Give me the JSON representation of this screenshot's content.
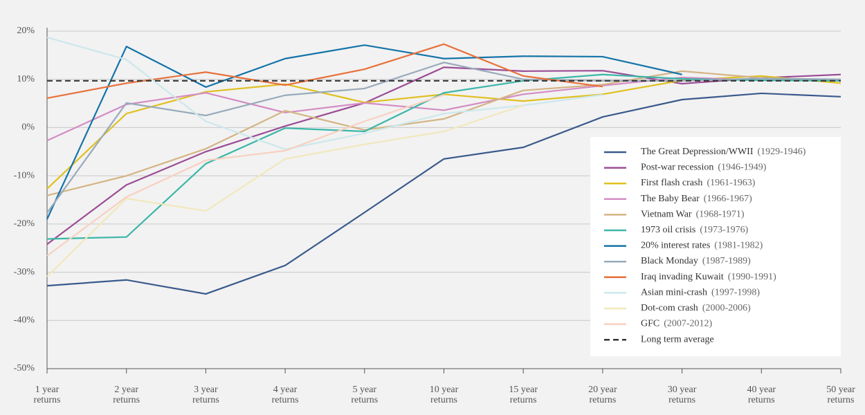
{
  "chart_data": {
    "type": "line",
    "categories": [
      "1 year returns",
      "2 year returns",
      "3 year returns",
      "4 year returns",
      "5 year returns",
      "10 year returns",
      "15 year returns",
      "20 year returns",
      "30 year returns",
      "40 year returns",
      "50 year returns"
    ],
    "ylim": [
      -50,
      20
    ],
    "yticks": [
      {
        "value": 20,
        "label": "20%"
      },
      {
        "value": 10,
        "label": "10%"
      },
      {
        "value": 0,
        "label": "0%"
      },
      {
        "value": -10,
        "label": "-10%"
      },
      {
        "value": -20,
        "label": "-20%"
      },
      {
        "value": -30,
        "label": "-30%"
      },
      {
        "value": -40,
        "label": "-40%"
      },
      {
        "value": -50,
        "label": "-50%"
      }
    ],
    "grid": true,
    "legend": "right",
    "series": [
      {
        "name": "The Great Depression/WWII",
        "period": "(1929-1946)",
        "color": "#3a5a8c",
        "values": [
          -32.8,
          -31.6,
          -34.5,
          -28.6,
          -17.6,
          -6.5,
          -4.1,
          2.2,
          5.8,
          7.1,
          6.4
        ]
      },
      {
        "name": "Post-war recession",
        "period": "(1946-1949)",
        "color": "#9b4d96",
        "values": [
          -24.2,
          -11.9,
          -5,
          0.3,
          5.1,
          12.5,
          11.7,
          11.8,
          9.1,
          10.3,
          11
        ]
      },
      {
        "name": "First flash crash",
        "period": "(1961-1963)",
        "color": "#e0c020",
        "values": [
          -12.7,
          2.9,
          7.4,
          9,
          5.2,
          6.9,
          5.5,
          6.9,
          9.8,
          10.7,
          9.2
        ]
      },
      {
        "name": "The Baby Bear",
        "period": "(1966-1967)",
        "color": "#d48cc4",
        "values": [
          -2.7,
          4.8,
          7.2,
          3.1,
          5.1,
          3.6,
          6.9,
          8.7,
          10.4,
          9.8,
          10
        ]
      },
      {
        "name": "Vietnam War",
        "period": "(1968-1971)",
        "color": "#d4b483",
        "values": [
          -14.1,
          -10,
          -4.4,
          3.5,
          -0.5,
          1.8,
          7.7,
          8.9,
          11.7,
          10.3,
          9.7
        ]
      },
      {
        "name": "1973 oil crisis",
        "period": "(1973-1976)",
        "color": "#3bb6a8",
        "values": [
          -23.1,
          -22.7,
          -7.5,
          -0.1,
          -0.8,
          7.2,
          9.7,
          11,
          10.1,
          9.8,
          9.7
        ]
      },
      {
        "name": "20% interest rates",
        "period": "(1981-1982)",
        "color": "#1474a8",
        "values": [
          -19,
          16.8,
          8.4,
          14.3,
          17.1,
          14.3,
          14.8,
          14.7,
          11,
          null,
          null
        ]
      },
      {
        "name": "Black Monday",
        "period": "(1987-1989)",
        "color": "#98aabb",
        "values": [
          -17.7,
          5.1,
          2.5,
          6.7,
          8.1,
          13.5,
          10,
          9.7,
          9.7,
          10.2,
          10
        ]
      },
      {
        "name": "Iraq invading Kuwait",
        "period": "(1990-1991)",
        "color": "#e8703a",
        "values": [
          6.1,
          9.2,
          11.5,
          8.8,
          12.1,
          17.3,
          10.7,
          8.5,
          null,
          null,
          null
        ]
      },
      {
        "name": "Asian mini-crash",
        "period": "(1997-1998)",
        "color": "#cce8ec",
        "values": [
          18.7,
          14.1,
          1.3,
          -4.5,
          -1.2,
          2.9,
          4.6,
          6.8,
          null,
          null,
          null
        ]
      },
      {
        "name": "Dot-com crash",
        "period": "(2000-2006)",
        "color": "#f0e8bc",
        "values": [
          -30.9,
          -14.7,
          -17.3,
          -6.5,
          -3.5,
          -0.8,
          4.6,
          null,
          null,
          null,
          null
        ]
      },
      {
        "name": "GFC",
        "period": "(2007-2012)",
        "color": "#f8d0c0",
        "values": [
          -26.6,
          -14.4,
          -6.8,
          -4.8,
          1.3,
          6.8,
          null,
          null,
          null,
          null,
          null
        ]
      }
    ],
    "average": {
      "name": "Long term average",
      "value": 9.7,
      "color": "#333333"
    }
  }
}
